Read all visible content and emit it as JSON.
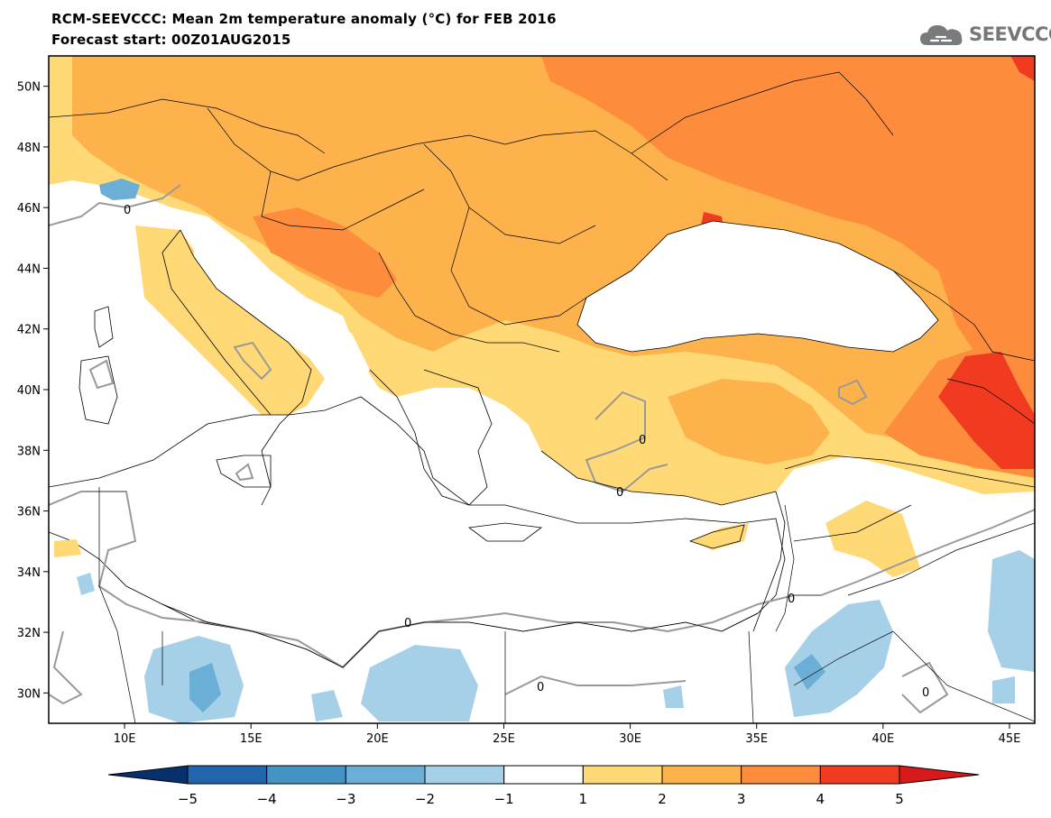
{
  "header": {
    "title": "RCM-SEEVCCC: Mean 2m temperature anomaly (°C) for FEB 2016",
    "subtitle": "Forecast start: 00Z01AUG2015",
    "logo_text": "SEEVCCC",
    "logo_icon": "cloud-icon"
  },
  "map": {
    "lon_range": [
      7,
      46
    ],
    "lat_range": [
      29,
      51
    ],
    "lat_ticks": [
      {
        "value": 30,
        "label": "30N"
      },
      {
        "value": 32,
        "label": "32N"
      },
      {
        "value": 34,
        "label": "34N"
      },
      {
        "value": 36,
        "label": "36N"
      },
      {
        "value": 38,
        "label": "38N"
      },
      {
        "value": 40,
        "label": "40N"
      },
      {
        "value": 42,
        "label": "42N"
      },
      {
        "value": 44,
        "label": "44N"
      },
      {
        "value": 46,
        "label": "46N"
      },
      {
        "value": 48,
        "label": "48N"
      },
      {
        "value": 50,
        "label": "50N"
      }
    ],
    "lon_ticks": [
      {
        "value": 10,
        "label": "10E"
      },
      {
        "value": 15,
        "label": "15E"
      },
      {
        "value": 20,
        "label": "20E"
      },
      {
        "value": 25,
        "label": "25E"
      },
      {
        "value": 30,
        "label": "30E"
      },
      {
        "value": 35,
        "label": "35E"
      },
      {
        "value": 40,
        "label": "40E"
      },
      {
        "value": 45,
        "label": "45E"
      }
    ],
    "contour_label": "0"
  },
  "colorbar": {
    "levels": [
      "-5",
      "-4",
      "-3",
      "-2",
      "-1",
      "1",
      "2",
      "3",
      "4",
      "5"
    ],
    "colors": [
      "#08306b",
      "#2166ac",
      "#4393c3",
      "#6baed6",
      "#a6cfe8",
      "#ffffff",
      "#fed976",
      "#feb24c",
      "#fd8d3c",
      "#f03b20",
      "#d7191c"
    ]
  }
}
